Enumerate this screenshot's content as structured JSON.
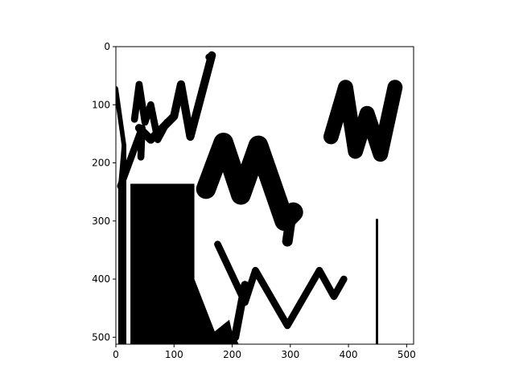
{
  "chart_data": {
    "type": "image",
    "title": "",
    "xlabel": "",
    "ylabel": "",
    "xlim": [
      0,
      512
    ],
    "ylim": [
      512,
      0
    ],
    "y_inverted": true,
    "grid": false,
    "colors": {
      "ink": "#000000",
      "background": "#ffffff"
    },
    "x_ticks": [
      {
        "value": 0,
        "label": "0"
      },
      {
        "value": 100,
        "label": "100"
      },
      {
        "value": 200,
        "label": "200"
      },
      {
        "value": 300,
        "label": "300"
      },
      {
        "value": 400,
        "label": "400"
      },
      {
        "value": 500,
        "label": "500"
      }
    ],
    "y_ticks": [
      {
        "value": 0,
        "label": "0"
      },
      {
        "value": 100,
        "label": "100"
      },
      {
        "value": 200,
        "label": "200"
      },
      {
        "value": 300,
        "label": "300"
      },
      {
        "value": 400,
        "label": "400"
      },
      {
        "value": 500,
        "label": "500"
      }
    ],
    "strokes": [
      {
        "width": 8,
        "points": [
          [
            0,
            72
          ],
          [
            14,
            170
          ],
          [
            14,
            512
          ]
        ]
      },
      {
        "width": 8,
        "points": [
          [
            14,
            170
          ],
          [
            8,
            240
          ],
          [
            8,
            512
          ]
        ]
      },
      {
        "width": 12,
        "points": [
          [
            8,
            240
          ],
          [
            45,
            140
          ],
          [
            43,
            190
          ]
        ]
      },
      {
        "width": 12,
        "points": [
          [
            32,
            125
          ],
          [
            40,
            65
          ],
          [
            50,
            130
          ],
          [
            60,
            100
          ],
          [
            72,
            160
          ],
          [
            88,
            130
          ]
        ]
      },
      {
        "width": 14,
        "points": [
          [
            40,
            140
          ],
          [
            60,
            160
          ],
          [
            100,
            120
          ],
          [
            112,
            65
          ],
          [
            128,
            155
          ],
          [
            165,
            15
          ]
        ]
      },
      {
        "width": 34,
        "points": [
          [
            155,
            245
          ],
          [
            185,
            165
          ],
          [
            215,
            255
          ],
          [
            245,
            170
          ],
          [
            290,
            300
          ],
          [
            305,
            285
          ]
        ]
      },
      {
        "width": 18,
        "points": [
          [
            295,
            335
          ],
          [
            300,
            300
          ]
        ]
      },
      {
        "width": 12,
        "points": [
          [
            175,
            340
          ],
          [
            222,
            440
          ],
          [
            240,
            385
          ],
          [
            295,
            480
          ],
          [
            350,
            385
          ],
          [
            375,
            430
          ],
          [
            392,
            400
          ]
        ]
      },
      {
        "width": 14,
        "points": [
          [
            205,
            500
          ],
          [
            222,
            410
          ]
        ]
      },
      {
        "width": 14,
        "points": [
          [
            168,
            500
          ],
          [
            160,
            515
          ]
        ]
      },
      {
        "width": 14,
        "points": [
          [
            195,
            495
          ],
          [
            205,
            515
          ]
        ]
      },
      {
        "width": 26,
        "points": [
          [
            370,
            155
          ],
          [
            395,
            70
          ],
          [
            412,
            180
          ],
          [
            432,
            115
          ],
          [
            455,
            185
          ],
          [
            480,
            70
          ]
        ]
      },
      {
        "width": 4,
        "points": [
          [
            449,
            298
          ],
          [
            449,
            512
          ]
        ]
      }
    ],
    "dots": [
      {
        "x": 160,
        "y": 18,
        "r": 6
      }
    ],
    "polygons": [
      {
        "points": [
          [
            25,
            236
          ],
          [
            135,
            236
          ],
          [
            135,
            400
          ],
          [
            170,
            490
          ],
          [
            195,
            470
          ],
          [
            205,
            512
          ],
          [
            25,
            512
          ]
        ]
      }
    ]
  }
}
